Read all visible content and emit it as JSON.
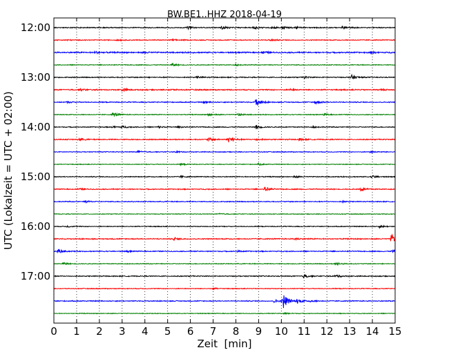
{
  "chart_data": {
    "type": "line",
    "title": "BW.BE1..HHZ 2018-04-19",
    "xlabel": "Zeit  [min]",
    "ylabel": "UTC (Lokalzeit = UTC + 02:00)",
    "xlim": [
      0,
      15
    ],
    "x_ticks": [
      "0",
      "1",
      "2",
      "3",
      "4",
      "5",
      "6",
      "7",
      "8",
      "9",
      "10",
      "11",
      "12",
      "13",
      "14",
      "15"
    ],
    "y_ticks": [
      {
        "label": "12:00",
        "trace_index": 0
      },
      {
        "label": "13:00",
        "trace_index": 4
      },
      {
        "label": "14:00",
        "trace_index": 8
      },
      {
        "label": "15:00",
        "trace_index": 12
      },
      {
        "label": "16:00",
        "trace_index": 16
      },
      {
        "label": "17:00",
        "trace_index": 20
      }
    ],
    "grid": "vertical-dotted",
    "trace_interval_minutes": 15,
    "colors": [
      "#000000",
      "#ff0000",
      "#0000ff",
      "#008000"
    ],
    "traces": [
      {
        "start": "12:00",
        "color": "#000000",
        "noise": 0.6,
        "events": [
          [
            5.9,
            1.8
          ],
          [
            7.4,
            2.0
          ],
          [
            8.8,
            2.0
          ],
          [
            9.6,
            1.6
          ],
          [
            10.1,
            1.6
          ],
          [
            12.7,
            1.6
          ],
          [
            10.6,
            1.2
          ]
        ]
      },
      {
        "start": "12:15",
        "color": "#ff0000",
        "noise": 0.55,
        "events": [
          [
            9.5,
            1.8
          ],
          [
            0.5,
            1.0
          ],
          [
            2.8,
            1.0
          ],
          [
            5.2,
            1.0
          ]
        ]
      },
      {
        "start": "12:30",
        "color": "#0000ff",
        "noise": 0.8,
        "events": [
          [
            1.8,
            1.4
          ],
          [
            9.2,
            1.4
          ],
          [
            4.0,
            1.0
          ],
          [
            14.0,
            1.0
          ]
        ]
      },
      {
        "start": "12:45",
        "color": "#008000",
        "noise": 0.5,
        "events": [
          [
            5.2,
            1.8
          ],
          [
            8.0,
            1.0
          ]
        ]
      },
      {
        "start": "13:00",
        "color": "#000000",
        "noise": 0.6,
        "events": [
          [
            13.1,
            3.2
          ],
          [
            6.3,
            1.2
          ],
          [
            11.0,
            1.2
          ]
        ]
      },
      {
        "start": "13:15",
        "color": "#ff0000",
        "noise": 0.7,
        "events": [
          [
            3.0,
            2.0
          ],
          [
            1.2,
            1.2
          ],
          [
            5.1,
            1.0
          ],
          [
            10.4,
            1.0
          ],
          [
            14.4,
            1.0
          ]
        ]
      },
      {
        "start": "13:30",
        "color": "#0000ff",
        "noise": 0.6,
        "events": [
          [
            8.9,
            6.0
          ],
          [
            11.5,
            3.0
          ],
          [
            6.6,
            1.2
          ],
          [
            0.6,
            1.0
          ]
        ]
      },
      {
        "start": "13:45",
        "color": "#008000",
        "noise": 0.5,
        "events": [
          [
            2.6,
            3.2
          ],
          [
            6.8,
            2.2
          ],
          [
            8.1,
            2.0
          ],
          [
            11.9,
            1.2
          ]
        ]
      },
      {
        "start": "14:00",
        "color": "#000000",
        "noise": 0.55,
        "events": [
          [
            8.9,
            2.8
          ],
          [
            2.6,
            1.6
          ],
          [
            3.0,
            1.3
          ],
          [
            4.6,
            1.2
          ],
          [
            11.4,
            1.0
          ],
          [
            5.5,
            1.0
          ]
        ]
      },
      {
        "start": "14:15",
        "color": "#ff0000",
        "noise": 0.65,
        "events": [
          [
            7.7,
            4.5
          ],
          [
            6.8,
            2.0
          ],
          [
            1.1,
            1.6
          ],
          [
            10.8,
            1.3
          ],
          [
            8.9,
            1.2
          ]
        ]
      },
      {
        "start": "14:30",
        "color": "#0000ff",
        "noise": 0.5,
        "events": [
          [
            3.7,
            1.6
          ],
          [
            13.9,
            1.4
          ],
          [
            5.4,
            1.0
          ]
        ]
      },
      {
        "start": "14:45",
        "color": "#008000",
        "noise": 0.45,
        "events": [
          [
            9.0,
            1.2
          ],
          [
            5.6,
            1.0
          ]
        ]
      },
      {
        "start": "15:00",
        "color": "#000000",
        "noise": 0.55,
        "events": [
          [
            14.0,
            1.8
          ],
          [
            5.6,
            1.0
          ],
          [
            10.6,
            1.0
          ]
        ]
      },
      {
        "start": "15:15",
        "color": "#ff0000",
        "noise": 0.6,
        "events": [
          [
            9.3,
            3.2
          ],
          [
            13.5,
            2.6
          ],
          [
            1.1,
            1.0
          ]
        ]
      },
      {
        "start": "15:30",
        "color": "#0000ff",
        "noise": 0.55,
        "events": [
          [
            1.4,
            1.4
          ],
          [
            12.7,
            1.0
          ]
        ]
      },
      {
        "start": "15:45",
        "color": "#008000",
        "noise": 0.45,
        "events": [
          [
            7.3,
            1.0
          ]
        ]
      },
      {
        "start": "16:00",
        "color": "#000000",
        "noise": 0.5,
        "events": [
          [
            14.3,
            1.8
          ],
          [
            0.6,
            1.0
          ]
        ]
      },
      {
        "start": "16:15",
        "color": "#ff0000",
        "noise": 0.65,
        "events": [
          [
            14.85,
            7.0
          ],
          [
            5.3,
            1.8
          ],
          [
            10.6,
            1.5
          ]
        ]
      },
      {
        "start": "16:30",
        "color": "#0000ff",
        "noise": 0.6,
        "events": [
          [
            0.2,
            3.2
          ],
          [
            14.9,
            2.2
          ],
          [
            3.2,
            1.0
          ],
          [
            8.1,
            1.0
          ]
        ]
      },
      {
        "start": "16:45",
        "color": "#008000",
        "noise": 0.5,
        "events": [
          [
            12.4,
            2.2
          ],
          [
            0.4,
            1.6
          ]
        ]
      },
      {
        "start": "17:00",
        "color": "#000000",
        "noise": 0.6,
        "events": [
          [
            11.0,
            2.2
          ],
          [
            12.4,
            1.8
          ]
        ]
      },
      {
        "start": "17:15",
        "color": "#ff0000",
        "noise": 0.5,
        "events": [
          [
            7.0,
            1.0
          ]
        ]
      },
      {
        "start": "17:30",
        "color": "#0000ff",
        "noise": 0.6,
        "events": [
          [
            10.1,
            10.0
          ],
          [
            10.7,
            3.0
          ],
          [
            9.7,
            2.2
          ],
          [
            11.3,
            1.2
          ]
        ]
      },
      {
        "start": "17:45",
        "color": "#008000",
        "noise": 0.45,
        "events": [
          [
            10.1,
            1.4
          ]
        ]
      }
    ]
  }
}
